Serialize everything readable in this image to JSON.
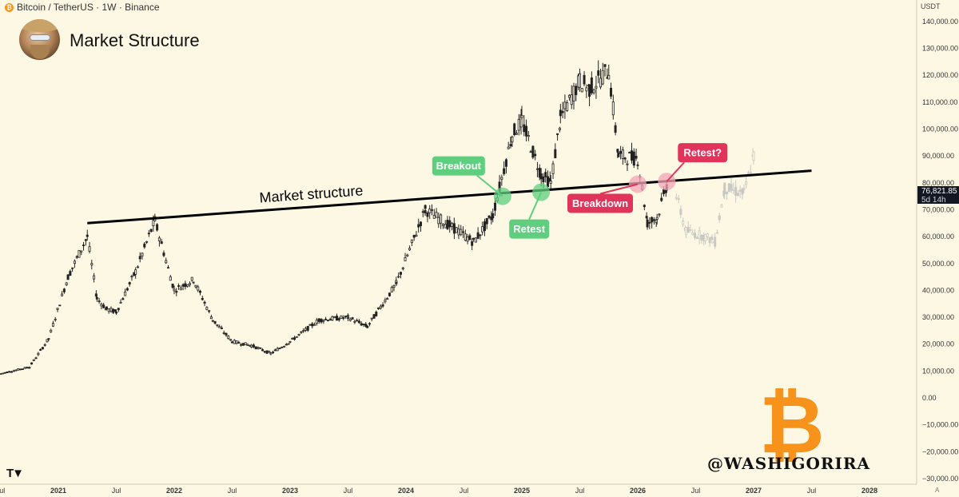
{
  "header": {
    "symbol_icon": "bitcoin-icon",
    "symbol_text": "Bitcoin / TetherUS · 1W · Binance"
  },
  "title": "Market Structure",
  "price_scale": {
    "currency": "USDT",
    "current_price": "76,821.85",
    "countdown": "5d 14h"
  },
  "watermark": {
    "handle": "@WASHIGORIRA",
    "logo": "bitcoin-logo"
  },
  "colors": {
    "background": "#fdf8e4",
    "green": "#5fcf7f",
    "red": "#e0345a",
    "pink": "#f2a5b6",
    "bitcoin": "#f7931a"
  },
  "chart_data": {
    "type": "candlestick",
    "title": "Market Structure",
    "x_tick_labels": [
      "Jul",
      "2021",
      "Jul",
      "2022",
      "Jul",
      "2023",
      "Jul",
      "2024",
      "Jul",
      "2025",
      "Jul",
      "2026",
      "Jul",
      "2027",
      "Jul",
      "2028"
    ],
    "y_tick_labels": [
      "140,000.00",
      "130,000.00",
      "120,000.00",
      "110,000.00",
      "100,000.00",
      "90,000.00",
      "80,000.00",
      "70,000.00",
      "60,000.00",
      "50,000.00",
      "40,000.00",
      "30,000.00",
      "20,000.00",
      "10,000.00",
      "0.00",
      "−10,000.00",
      "−20,000.00",
      "−30,000.00"
    ],
    "ylim": [
      -30000,
      140000
    ],
    "trendline": {
      "label": "Market structure",
      "start": {
        "date": "2021-04",
        "value": 65000
      },
      "end": {
        "date": "2027-07",
        "value": 84500
      }
    },
    "annotations": [
      {
        "label": "Breakout",
        "date": "2024-11",
        "value": 75000,
        "color": "green"
      },
      {
        "label": "Retest",
        "date": "2025-03",
        "value": 76500,
        "color": "green"
      },
      {
        "label": "Breakdown",
        "date": "2026-01",
        "value": 79500,
        "color": "red"
      },
      {
        "label": "Retest?",
        "date": "2026-04",
        "value": 80500,
        "color": "red"
      }
    ],
    "price_path": [
      [
        "2020-07",
        9000
      ],
      [
        "2020-10",
        11500
      ],
      [
        "2020-12",
        22000
      ],
      [
        "2021-02",
        45000
      ],
      [
        "2021-04",
        60000
      ],
      [
        "2021-05",
        37000
      ],
      [
        "2021-06",
        33000
      ],
      [
        "2021-07",
        32000
      ],
      [
        "2021-09",
        47000
      ],
      [
        "2021-11",
        66000
      ],
      [
        "2022-01",
        40000
      ],
      [
        "2022-03",
        44000
      ],
      [
        "2022-05",
        29000
      ],
      [
        "2022-07",
        21000
      ],
      [
        "2022-09",
        19500
      ],
      [
        "2022-11",
        16500
      ],
      [
        "2023-01",
        21000
      ],
      [
        "2023-04",
        29000
      ],
      [
        "2023-07",
        30000
      ],
      [
        "2023-09",
        26500
      ],
      [
        "2023-12",
        42500
      ],
      [
        "2024-03",
        70000
      ],
      [
        "2024-06",
        63000
      ],
      [
        "2024-08",
        58000
      ],
      [
        "2024-10",
        68000
      ],
      [
        "2024-12",
        98000
      ],
      [
        "2025-01",
        103000
      ],
      [
        "2025-03",
        83000
      ],
      [
        "2025-04",
        80000
      ],
      [
        "2025-05",
        104000
      ],
      [
        "2025-07",
        118000
      ],
      [
        "2025-08",
        115000
      ],
      [
        "2025-10",
        122000
      ],
      [
        "2025-11",
        90000
      ],
      [
        "2026-01",
        89000
      ],
      [
        "2026-02",
        65000
      ],
      [
        "2026-03",
        67000
      ],
      [
        "2026-04",
        79000
      ]
    ],
    "projection_path": [
      [
        "2026-05",
        75000
      ],
      [
        "2026-06",
        62000
      ],
      [
        "2026-08",
        60000
      ],
      [
        "2026-09",
        58000
      ],
      [
        "2026-10",
        78000
      ],
      [
        "2026-12",
        76000
      ],
      [
        "2027-01",
        90000
      ]
    ]
  }
}
